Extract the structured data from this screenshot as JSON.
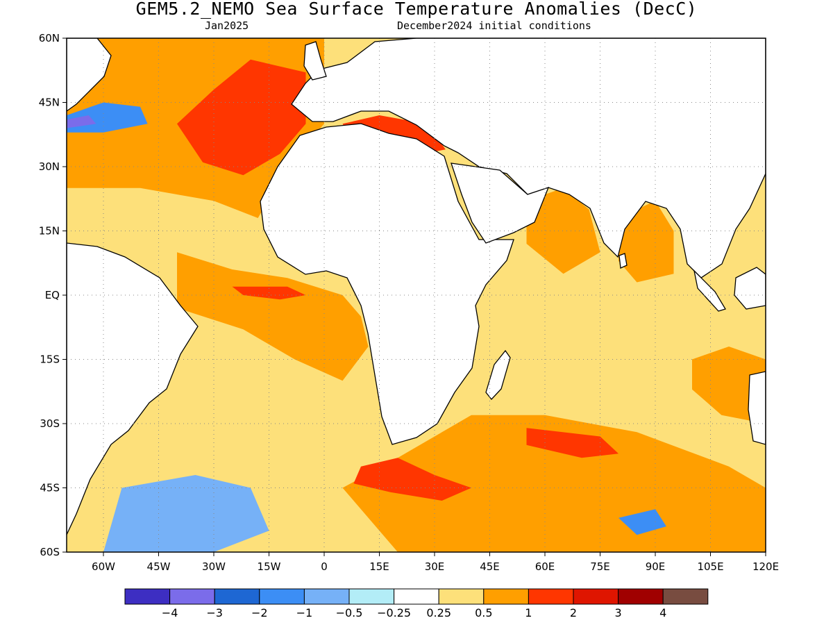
{
  "header": {
    "title": "GEM5.2_NEMO Sea Surface Temperature Anomalies (DecC)",
    "valid_month": "Jan2025",
    "init_label": "December2024 initial conditions"
  },
  "map": {
    "projection": "equirectangular",
    "lon_range": [
      -70,
      120
    ],
    "lat_range": [
      -60,
      60
    ],
    "lat_ticks": [
      {
        "value": 60,
        "label": "60N"
      },
      {
        "value": 45,
        "label": "45N"
      },
      {
        "value": 30,
        "label": "30N"
      },
      {
        "value": 15,
        "label": "15N"
      },
      {
        "value": 0,
        "label": "EQ"
      },
      {
        "value": -15,
        "label": "15S"
      },
      {
        "value": -30,
        "label": "30S"
      },
      {
        "value": -45,
        "label": "45S"
      },
      {
        "value": -60,
        "label": "60S"
      }
    ],
    "lon_ticks": [
      {
        "value": -60,
        "label": "60W"
      },
      {
        "value": -45,
        "label": "45W"
      },
      {
        "value": -30,
        "label": "30W"
      },
      {
        "value": -15,
        "label": "15W"
      },
      {
        "value": 0,
        "label": "0"
      },
      {
        "value": 15,
        "label": "15E"
      },
      {
        "value": 30,
        "label": "30E"
      },
      {
        "value": 45,
        "label": "45E"
      },
      {
        "value": 60,
        "label": "60E"
      },
      {
        "value": 75,
        "label": "75E"
      },
      {
        "value": 90,
        "label": "90E"
      },
      {
        "value": 105,
        "label": "105E"
      },
      {
        "value": 120,
        "label": "120E"
      }
    ],
    "grid_lines": "dotted",
    "ocean_background": "#fde07a",
    "land_color": "#ffffff",
    "coastline_color": "#000000",
    "anomaly_regions": [
      {
        "name": "north-atlantic-warm",
        "color": "#ff9f00",
        "points": [
          [
            -70,
            60
          ],
          [
            0,
            60
          ],
          [
            0,
            40
          ],
          [
            -10,
            30
          ],
          [
            -18,
            18
          ],
          [
            -30,
            22
          ],
          [
            -50,
            25
          ],
          [
            -70,
            25
          ]
        ]
      },
      {
        "name": "north-atlantic-red",
        "color": "#ff3600",
        "points": [
          [
            -40,
            40
          ],
          [
            -30,
            48
          ],
          [
            -20,
            55
          ],
          [
            -5,
            52
          ],
          [
            -5,
            40
          ],
          [
            -12,
            33
          ],
          [
            -22,
            28
          ],
          [
            -33,
            31
          ]
        ]
      },
      {
        "name": "mediterranean-red",
        "color": "#ff3600",
        "points": [
          [
            5,
            40
          ],
          [
            15,
            42
          ],
          [
            28,
            40
          ],
          [
            33,
            34
          ],
          [
            20,
            32
          ],
          [
            10,
            33
          ]
        ]
      },
      {
        "name": "northwest-atlantic-cool",
        "color": "#3c8ef5",
        "points": [
          [
            -70,
            42
          ],
          [
            -60,
            45
          ],
          [
            -50,
            44
          ],
          [
            -48,
            40
          ],
          [
            -60,
            38
          ],
          [
            -70,
            38
          ]
        ]
      },
      {
        "name": "northwest-atlantic-blue",
        "color": "#7b6cea",
        "points": [
          [
            -70,
            41
          ],
          [
            -64,
            42
          ],
          [
            -62,
            40
          ],
          [
            -70,
            39
          ]
        ]
      },
      {
        "name": "equatorial-atlantic-warm",
        "color": "#ff9f00",
        "points": [
          [
            -40,
            10
          ],
          [
            -25,
            6
          ],
          [
            -10,
            4
          ],
          [
            5,
            0
          ],
          [
            10,
            -5
          ],
          [
            12,
            -12
          ],
          [
            5,
            -20
          ],
          [
            -8,
            -15
          ],
          [
            -22,
            -8
          ],
          [
            -40,
            -3
          ]
        ]
      },
      {
        "name": "equatorial-atlantic-red",
        "color": "#ff3600",
        "points": [
          [
            -25,
            2
          ],
          [
            -10,
            2
          ],
          [
            -5,
            0
          ],
          [
            -12,
            -1
          ],
          [
            -22,
            0
          ]
        ]
      },
      {
        "name": "south-indian-warm",
        "color": "#ff9f00",
        "points": [
          [
            20,
            -38
          ],
          [
            40,
            -28
          ],
          [
            60,
            -28
          ],
          [
            85,
            -32
          ],
          [
            110,
            -40
          ],
          [
            120,
            -45
          ],
          [
            120,
            -60
          ],
          [
            20,
            -60
          ],
          [
            5,
            -45
          ]
        ]
      },
      {
        "name": "south-indian-red",
        "color": "#ff3600",
        "points": [
          [
            55,
            -31
          ],
          [
            75,
            -33
          ],
          [
            80,
            -37
          ],
          [
            70,
            -38
          ],
          [
            55,
            -35
          ]
        ]
      },
      {
        "name": "agulhas-red",
        "color": "#ff3600",
        "points": [
          [
            10,
            -40
          ],
          [
            20,
            -38
          ],
          [
            30,
            -42
          ],
          [
            40,
            -45
          ],
          [
            32,
            -48
          ],
          [
            18,
            -46
          ],
          [
            8,
            -44
          ]
        ]
      },
      {
        "name": "arabian-sea-warm",
        "color": "#ff9f00",
        "points": [
          [
            55,
            22
          ],
          [
            65,
            25
          ],
          [
            72,
            20
          ],
          [
            75,
            10
          ],
          [
            65,
            5
          ],
          [
            55,
            12
          ]
        ]
      },
      {
        "name": "bay-of-bengal-warm",
        "color": "#ff9f00",
        "points": [
          [
            80,
            18
          ],
          [
            90,
            22
          ],
          [
            95,
            15
          ],
          [
            95,
            5
          ],
          [
            85,
            3
          ],
          [
            80,
            8
          ]
        ]
      },
      {
        "name": "south-atlantic-cool",
        "color": "#76b1f7",
        "points": [
          [
            -55,
            -45
          ],
          [
            -35,
            -42
          ],
          [
            -20,
            -45
          ],
          [
            -15,
            -55
          ],
          [
            -30,
            -60
          ],
          [
            -60,
            -60
          ]
        ]
      },
      {
        "name": "southern-ocean-cool",
        "color": "#3c8ef5",
        "points": [
          [
            80,
            -52
          ],
          [
            90,
            -50
          ],
          [
            93,
            -54
          ],
          [
            85,
            -56
          ]
        ]
      },
      {
        "name": "west-australia-warm",
        "color": "#ff9f00",
        "points": [
          [
            100,
            -15
          ],
          [
            110,
            -12
          ],
          [
            120,
            -15
          ],
          [
            120,
            -30
          ],
          [
            108,
            -28
          ],
          [
            100,
            -22
          ]
        ]
      }
    ]
  },
  "colorbar": {
    "colors": [
      "#3d2ec2",
      "#7b6cea",
      "#1e67d3",
      "#3c8ef5",
      "#76b1f7",
      "#b3edf7",
      "#ffffff",
      "#fde07a",
      "#ff9f00",
      "#ff3600",
      "#df1500",
      "#a00000",
      "#784c40"
    ],
    "labels": [
      "−4",
      "−3",
      "−2",
      "−1",
      "−0.5",
      "−0.25",
      "0.25",
      "0.5",
      "1",
      "2",
      "3",
      "4"
    ]
  }
}
